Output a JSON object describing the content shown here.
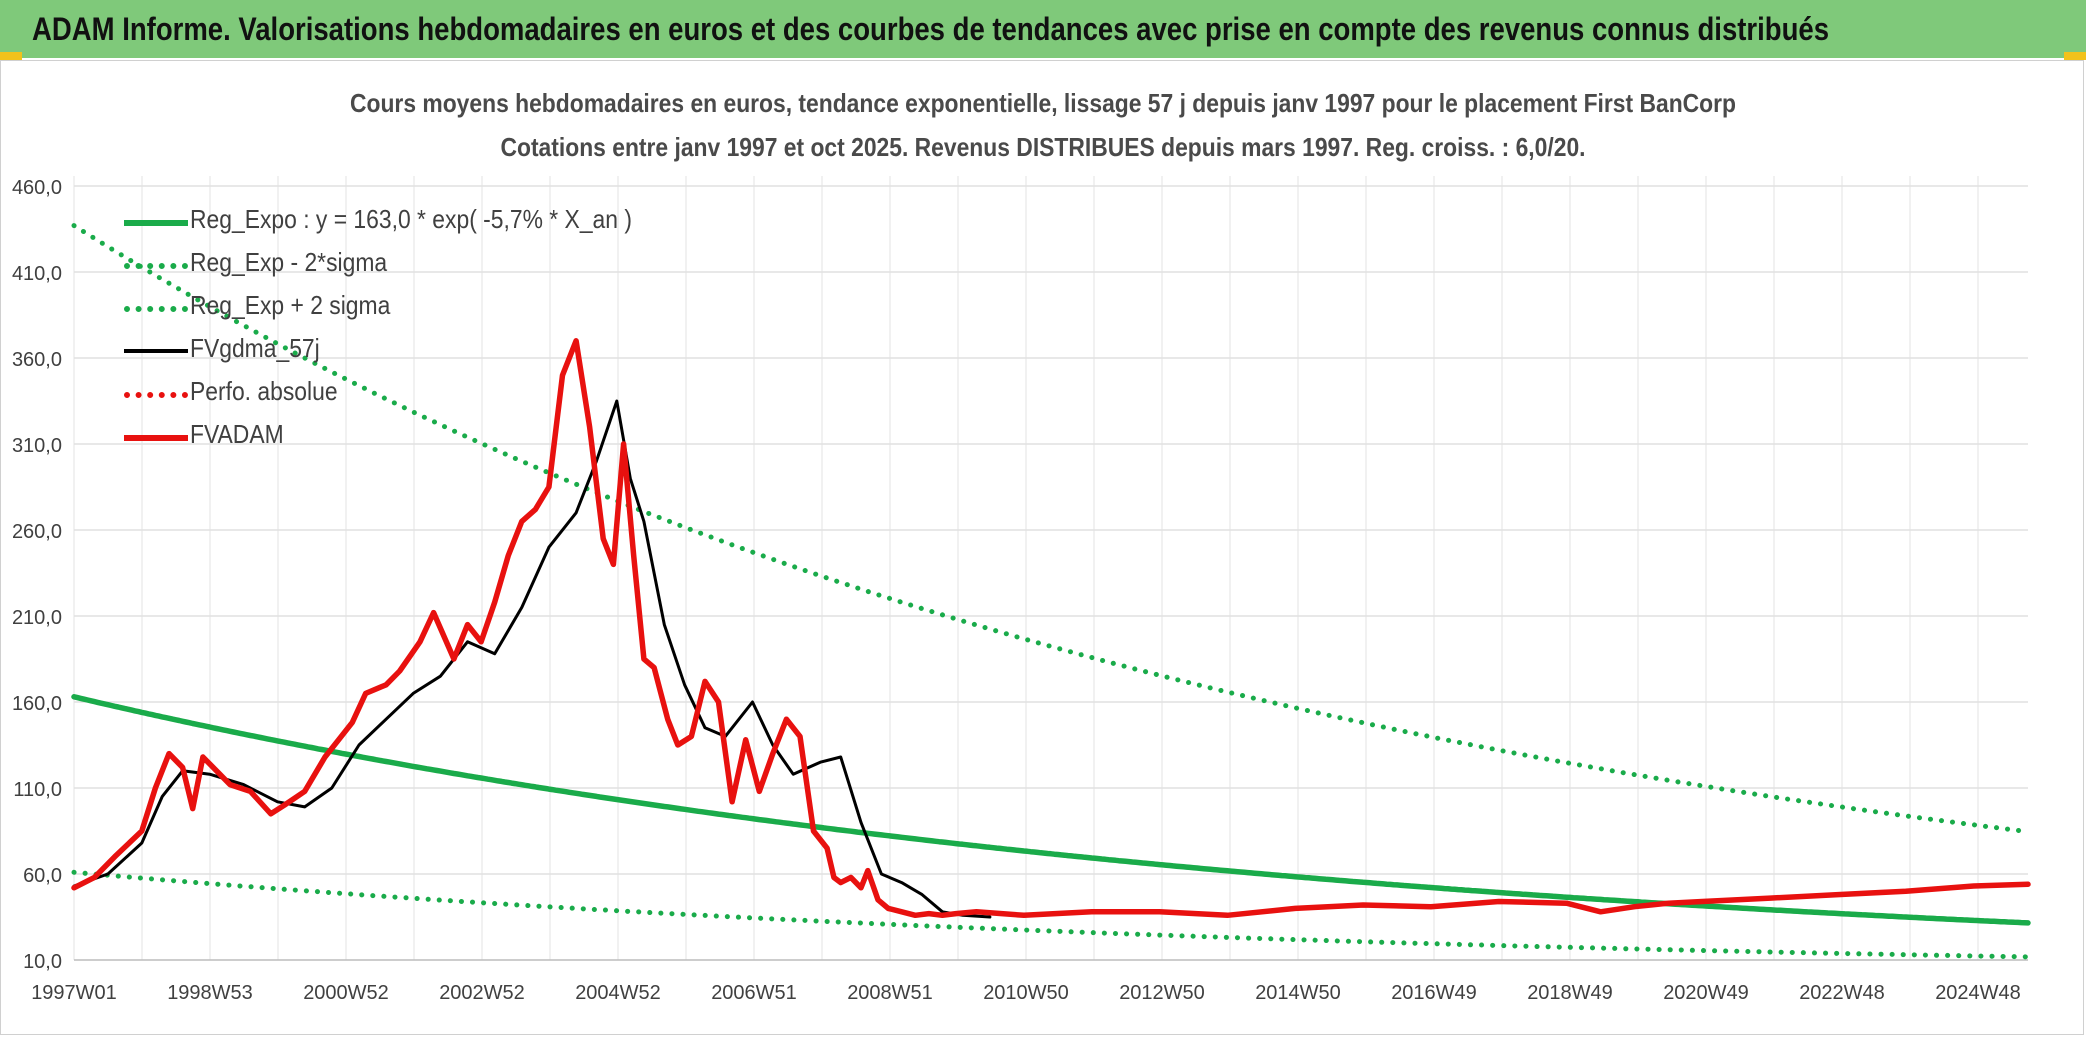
{
  "header": {
    "title": "ADAM Informe. Valorisations hebdomadaires en euros et des courbes de tendances avec prise en compte des revenus connus distribués"
  },
  "chart_data": {
    "type": "line",
    "title": "Cours moyens hebdomadaires en euros, tendance exponentielle, lissage 57 j depuis janv 1997 pour le placement First BanCorp",
    "subtitle": "Cotations entre janv 1997 et oct 2025. Revenus DISTRIBUES depuis mars 1997. Reg. croiss. : 6,0/20.",
    "xlabel": "",
    "ylabel": "",
    "x_ticks": [
      "1997W01",
      "1998W53",
      "2000W52",
      "2002W52",
      "2004W52",
      "2006W51",
      "2008W51",
      "2010W50",
      "2012W50",
      "2014W50",
      "2016W49",
      "2018W49",
      "2020W49",
      "2022W48",
      "2024W48"
    ],
    "y_ticks": [
      "460,0",
      "410,0",
      "360,0",
      "310,0",
      "260,0",
      "210,0",
      "160,0",
      "110,0",
      "60,0",
      "10,0"
    ],
    "ylim": [
      10,
      460
    ],
    "xlim": [
      1997.0,
      2025.8
    ],
    "grid": true,
    "legend_position": "top-left",
    "series": [
      {
        "name": "Reg_Expo : y = 163,0 * exp( -5,7% *  X_an )",
        "color": "#1aab4a",
        "style": "solid",
        "formula": {
          "a": 163.0,
          "k": -0.057,
          "t0": 1997.0
        },
        "x": [
          1997.0,
          2025.8
        ]
      },
      {
        "name": "Reg_Exp - 2*sigma",
        "color": "#1aab4a",
        "style": "dotted",
        "formula": {
          "a": 61.0,
          "k": -0.057,
          "t0": 1997.0
        },
        "x": [
          1997.0,
          2025.8
        ]
      },
      {
        "name": "Reg_Exp + 2 sigma",
        "color": "#1aab4a",
        "style": "dotted",
        "formula": {
          "a": 437.0,
          "k": -0.057,
          "t0": 1997.0
        },
        "x": [
          1997.0,
          2025.8
        ]
      },
      {
        "name": "FVgdma_57j",
        "color": "#000000",
        "style": "solid",
        "x": [
          1997.0,
          1997.5,
          1998.0,
          1998.3,
          1998.6,
          1999.0,
          1999.5,
          2000.0,
          2000.4,
          2000.8,
          2001.2,
          2001.6,
          2002.0,
          2002.4,
          2002.8,
          2003.2,
          2003.6,
          2004.0,
          2004.4,
          2004.7,
          2005.0,
          2005.2,
          2005.4,
          2005.7,
          2006.0,
          2006.3,
          2006.6,
          2007.0,
          2007.3,
          2007.6,
          2008.0,
          2008.3,
          2008.6,
          2008.9,
          2009.2,
          2009.5,
          2009.8,
          2010.1,
          2010.5
        ],
        "values": [
          53,
          60,
          78,
          105,
          120,
          118,
          112,
          102,
          99,
          110,
          135,
          150,
          165,
          175,
          195,
          188,
          215,
          250,
          270,
          300,
          335,
          290,
          265,
          205,
          170,
          145,
          140,
          160,
          135,
          118,
          125,
          128,
          90,
          60,
          55,
          48,
          38,
          36,
          35
        ]
      },
      {
        "name": "Perfo. absolue",
        "color": "#e8110f",
        "style": "dotted",
        "x": [],
        "values": []
      },
      {
        "name": "FVADAM",
        "color": "#e8110f",
        "style": "solid",
        "x": [
          1997.0,
          1997.3,
          1997.6,
          1998.0,
          1998.2,
          1998.4,
          1998.6,
          1998.75,
          1998.9,
          1999.1,
          1999.3,
          1999.6,
          1999.9,
          2000.1,
          2000.4,
          2000.7,
          2000.9,
          2001.1,
          2001.3,
          2001.6,
          2001.8,
          2002.1,
          2002.3,
          2002.6,
          2002.8,
          2003.0,
          2003.2,
          2003.4,
          2003.6,
          2003.8,
          2004.0,
          2004.2,
          2004.4,
          2004.6,
          2004.8,
          2004.95,
          2005.1,
          2005.25,
          2005.4,
          2005.55,
          2005.65,
          2005.75,
          2005.9,
          2006.1,
          2006.3,
          2006.5,
          2006.7,
          2006.9,
          2007.1,
          2007.3,
          2007.5,
          2007.7,
          2007.9,
          2008.1,
          2008.2,
          2008.3,
          2008.45,
          2008.6,
          2008.7,
          2008.85,
          2009.0,
          2009.2,
          2009.4,
          2009.6,
          2009.8,
          2010.0,
          2010.3,
          2011.0,
          2012.0,
          2013.0,
          2014.0,
          2015.0,
          2016.0,
          2017.0,
          2018.0,
          2019.0,
          2019.5,
          2020.0,
          2020.5,
          2021.0,
          2022.0,
          2023.0,
          2024.0,
          2025.0,
          2025.8
        ],
        "values": [
          52,
          58,
          70,
          85,
          110,
          130,
          122,
          98,
          128,
          120,
          112,
          108,
          95,
          100,
          108,
          128,
          138,
          148,
          165,
          170,
          178,
          195,
          212,
          185,
          205,
          195,
          218,
          245,
          265,
          272,
          285,
          350,
          370,
          320,
          255,
          240,
          310,
          245,
          185,
          180,
          165,
          150,
          135,
          140,
          172,
          160,
          102,
          138,
          108,
          130,
          150,
          140,
          85,
          75,
          58,
          55,
          58,
          52,
          62,
          45,
          40,
          38,
          36,
          37,
          36,
          37,
          38,
          36,
          38,
          38,
          36,
          40,
          42,
          41,
          44,
          43,
          38,
          41,
          43,
          44,
          46,
          48,
          50,
          53,
          54
        ]
      }
    ]
  }
}
